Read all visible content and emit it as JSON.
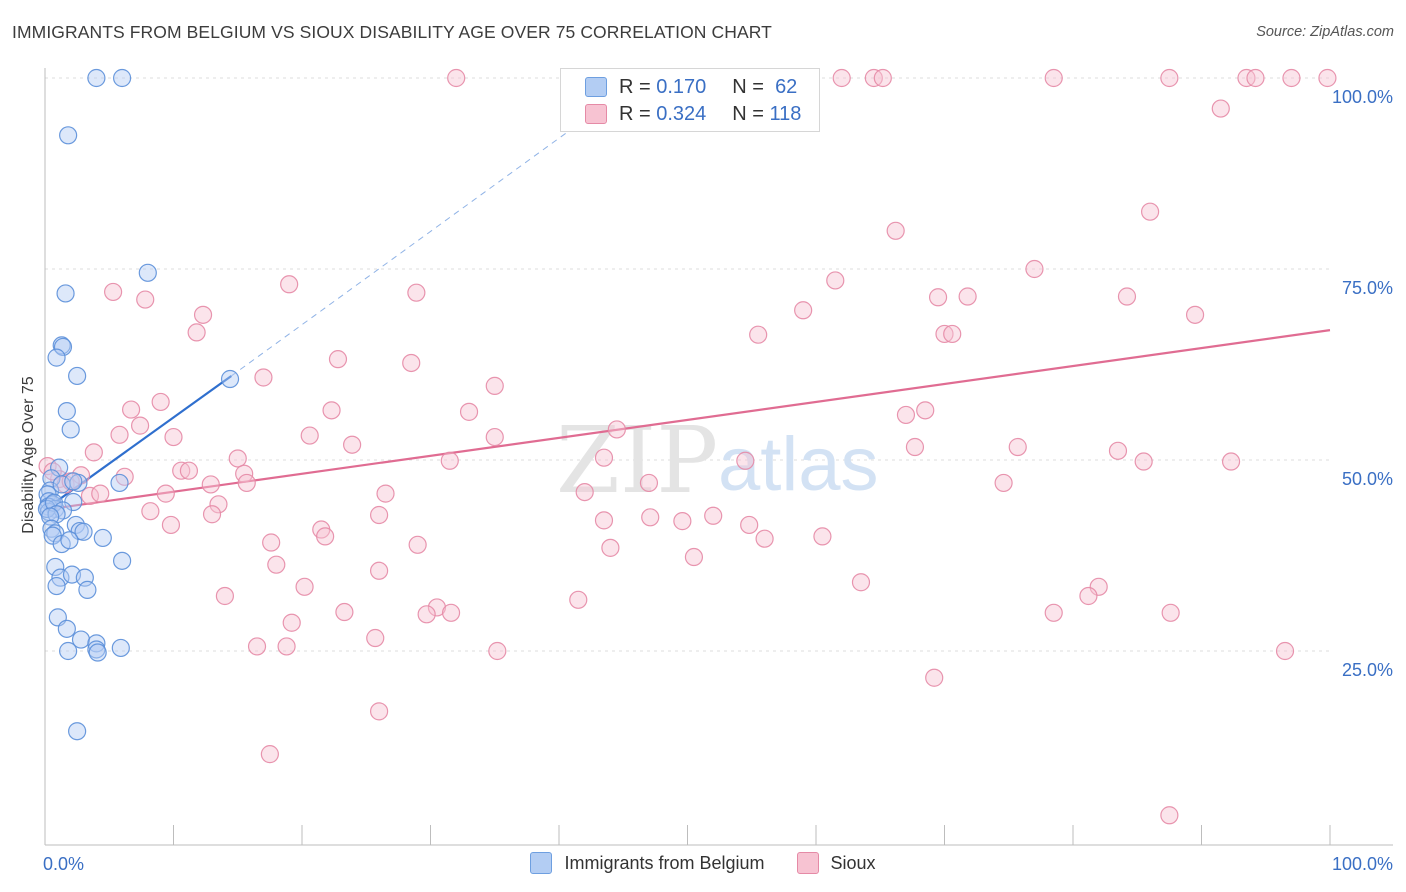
{
  "title": "IMMIGRANTS FROM BELGIUM VS SIOUX DISABILITY AGE OVER 75 CORRELATION CHART",
  "source": "Source: ZipAtlas.com",
  "watermark": {
    "zip": "ZIP",
    "atlas": "atlas"
  },
  "legend": {
    "r_label": "R =",
    "n_label": "N =",
    "series": [
      {
        "name": "Immigrants from Belgium",
        "r": "0.170",
        "n": "62",
        "color": "#6e9fe0",
        "fill": "#b3cdf3"
      },
      {
        "name": "Sioux",
        "r": "0.324",
        "n": "118",
        "color": "#e58aa6",
        "fill": "#f7c3d2"
      }
    ]
  },
  "chart_data": {
    "type": "scatter",
    "title": "IMMIGRANTS FROM BELGIUM VS SIOUX DISABILITY AGE OVER 75 CORRELATION CHART",
    "xlabel": "",
    "ylabel": "Disability Age Over 75",
    "xlim": [
      0,
      100
    ],
    "ylim": [
      0,
      100
    ],
    "x_tick_labels": [
      "0.0%",
      "100.0%"
    ],
    "y_tick_labels": [
      {
        "value": 25,
        "label": "25.0%"
      },
      {
        "value": 50,
        "label": "50.0%"
      },
      {
        "value": 75,
        "label": "75.0%"
      },
      {
        "value": 100,
        "label": "100.0%"
      }
    ],
    "series": [
      {
        "name": "Immigrants from Belgium",
        "r": 0.17,
        "n": 62,
        "trend": {
          "x0": 0,
          "y0": 43.5,
          "x1": 14.5,
          "y1": 61,
          "extend_to_x": 44,
          "extend_y1": 97
        },
        "points": [
          [
            4,
            100
          ],
          [
            6,
            100
          ],
          [
            1.8,
            92.5
          ],
          [
            8,
            74.5
          ],
          [
            1.6,
            71.8
          ],
          [
            1.3,
            65
          ],
          [
            1.4,
            64.8
          ],
          [
            0.9,
            63.4
          ],
          [
            2.5,
            61
          ],
          [
            14.4,
            60.6
          ],
          [
            1.7,
            56.4
          ],
          [
            2,
            54
          ],
          [
            1.1,
            49
          ],
          [
            0.5,
            47.6
          ],
          [
            0.4,
            46
          ],
          [
            1.3,
            46.8
          ],
          [
            2.6,
            47
          ],
          [
            5.8,
            47
          ],
          [
            2.2,
            47.2
          ],
          [
            0.2,
            45.5
          ],
          [
            0.3,
            44.6
          ],
          [
            0.6,
            44.2
          ],
          [
            0.25,
            43.9
          ],
          [
            0.8,
            43.6
          ],
          [
            0.3,
            43.2
          ],
          [
            0.15,
            43.6
          ],
          [
            0.7,
            44.4
          ],
          [
            2.2,
            44.5
          ],
          [
            1.4,
            43.4
          ],
          [
            0.9,
            42.9
          ],
          [
            0.4,
            42.6
          ],
          [
            0.5,
            41
          ],
          [
            2.4,
            41.5
          ],
          [
            0.8,
            40.4
          ],
          [
            0.6,
            40.1
          ],
          [
            2.7,
            40.7
          ],
          [
            3,
            40.6
          ],
          [
            1.3,
            39
          ],
          [
            1.9,
            39.5
          ],
          [
            4.5,
            39.8
          ],
          [
            6,
            36.8
          ],
          [
            0.8,
            36
          ],
          [
            1.2,
            34.6
          ],
          [
            2.1,
            35
          ],
          [
            3.1,
            34.6
          ],
          [
            0.9,
            33.5
          ],
          [
            3.3,
            33
          ],
          [
            1,
            29.4
          ],
          [
            1.7,
            27.9
          ],
          [
            2.8,
            26.5
          ],
          [
            4,
            26
          ],
          [
            4,
            25.2
          ],
          [
            4.1,
            24.8
          ],
          [
            5.9,
            25.4
          ],
          [
            1.8,
            25
          ],
          [
            2.5,
            14.5
          ]
        ]
      },
      {
        "name": "Sioux",
        "r": 0.324,
        "n": 118,
        "trend": {
          "x0": 0,
          "y0": 43.5,
          "x1": 100,
          "y1": 67
        },
        "points": [
          [
            32,
            100
          ],
          [
            62,
            100
          ],
          [
            64.5,
            100
          ],
          [
            65.2,
            100
          ],
          [
            78.5,
            100
          ],
          [
            87.5,
            100
          ],
          [
            93.5,
            100
          ],
          [
            94.2,
            100
          ],
          [
            97,
            100
          ],
          [
            99.8,
            100
          ],
          [
            91.5,
            96
          ],
          [
            86,
            82.5
          ],
          [
            66.2,
            80
          ],
          [
            77,
            75
          ],
          [
            61.5,
            73.5
          ],
          [
            19,
            73
          ],
          [
            5.3,
            72
          ],
          [
            7.8,
            71
          ],
          [
            28.9,
            71.9
          ],
          [
            69.5,
            71.3
          ],
          [
            71.8,
            71.4
          ],
          [
            84.2,
            71.4
          ],
          [
            59,
            69.6
          ],
          [
            12.3,
            69
          ],
          [
            89.5,
            69
          ],
          [
            11.8,
            66.7
          ],
          [
            55.5,
            66.4
          ],
          [
            70,
            66.5
          ],
          [
            70.6,
            66.5
          ],
          [
            22.8,
            63.2
          ],
          [
            28.5,
            62.7
          ],
          [
            17,
            60.8
          ],
          [
            35,
            59.7
          ],
          [
            9,
            57.6
          ],
          [
            6.7,
            56.6
          ],
          [
            22.3,
            56.5
          ],
          [
            33,
            56.3
          ],
          [
            68.5,
            56.5
          ],
          [
            67,
            55.9
          ],
          [
            7.4,
            54.5
          ],
          [
            44.5,
            54
          ],
          [
            5.8,
            53.3
          ],
          [
            10,
            53
          ],
          [
            20.6,
            53.2
          ],
          [
            35,
            53
          ],
          [
            23.9,
            52
          ],
          [
            67.7,
            51.7
          ],
          [
            75.7,
            51.7
          ],
          [
            83.5,
            51.2
          ],
          [
            3.8,
            51
          ],
          [
            43.5,
            50.3
          ],
          [
            15,
            50.2
          ],
          [
            31.5,
            49.9
          ],
          [
            54.5,
            49.9
          ],
          [
            85.5,
            49.8
          ],
          [
            92.3,
            49.8
          ],
          [
            0.2,
            49.2
          ],
          [
            1.1,
            47.5
          ],
          [
            6.2,
            47.8
          ],
          [
            10.6,
            48.6
          ],
          [
            11.2,
            48.6
          ],
          [
            15.5,
            48.2
          ],
          [
            2.8,
            48
          ],
          [
            0.6,
            48.5
          ],
          [
            1.6,
            46.8
          ],
          [
            2,
            47.2
          ],
          [
            12.9,
            46.8
          ],
          [
            15.7,
            47
          ],
          [
            47,
            47
          ],
          [
            74.6,
            47
          ],
          [
            3.5,
            45.3
          ],
          [
            4.3,
            45.6
          ],
          [
            9.4,
            45.6
          ],
          [
            26.5,
            45.6
          ],
          [
            42,
            45.8
          ],
          [
            13.5,
            44.2
          ],
          [
            8.2,
            43.3
          ],
          [
            13,
            42.9
          ],
          [
            26,
            42.8
          ],
          [
            47.1,
            42.5
          ],
          [
            43.5,
            42.1
          ],
          [
            49.6,
            42
          ],
          [
            52,
            42.7
          ],
          [
            9.8,
            41.5
          ],
          [
            54.8,
            41.5
          ],
          [
            21.5,
            40.9
          ],
          [
            21.8,
            40
          ],
          [
            56,
            39.7
          ],
          [
            60.5,
            40
          ],
          [
            17.6,
            39.2
          ],
          [
            29,
            38.9
          ],
          [
            44,
            38.5
          ],
          [
            50.5,
            37.3
          ],
          [
            18,
            36.3
          ],
          [
            26,
            35.5
          ],
          [
            63.5,
            34
          ],
          [
            20.2,
            33.4
          ],
          [
            82,
            33.4
          ],
          [
            81.2,
            32.2
          ],
          [
            14,
            32.2
          ],
          [
            41.5,
            31.7
          ],
          [
            30.5,
            30.7
          ],
          [
            31.6,
            30
          ],
          [
            23.3,
            30.1
          ],
          [
            29.7,
            29.8
          ],
          [
            78.5,
            30
          ],
          [
            87.6,
            30
          ],
          [
            19.2,
            28.7
          ],
          [
            25.7,
            26.7
          ],
          [
            16.5,
            25.6
          ],
          [
            18.8,
            25.6
          ],
          [
            35.2,
            25
          ],
          [
            96.5,
            25
          ],
          [
            69.2,
            21.5
          ],
          [
            26,
            17.1
          ],
          [
            17.5,
            11.5
          ],
          [
            87.5,
            3.5
          ]
        ]
      }
    ]
  }
}
